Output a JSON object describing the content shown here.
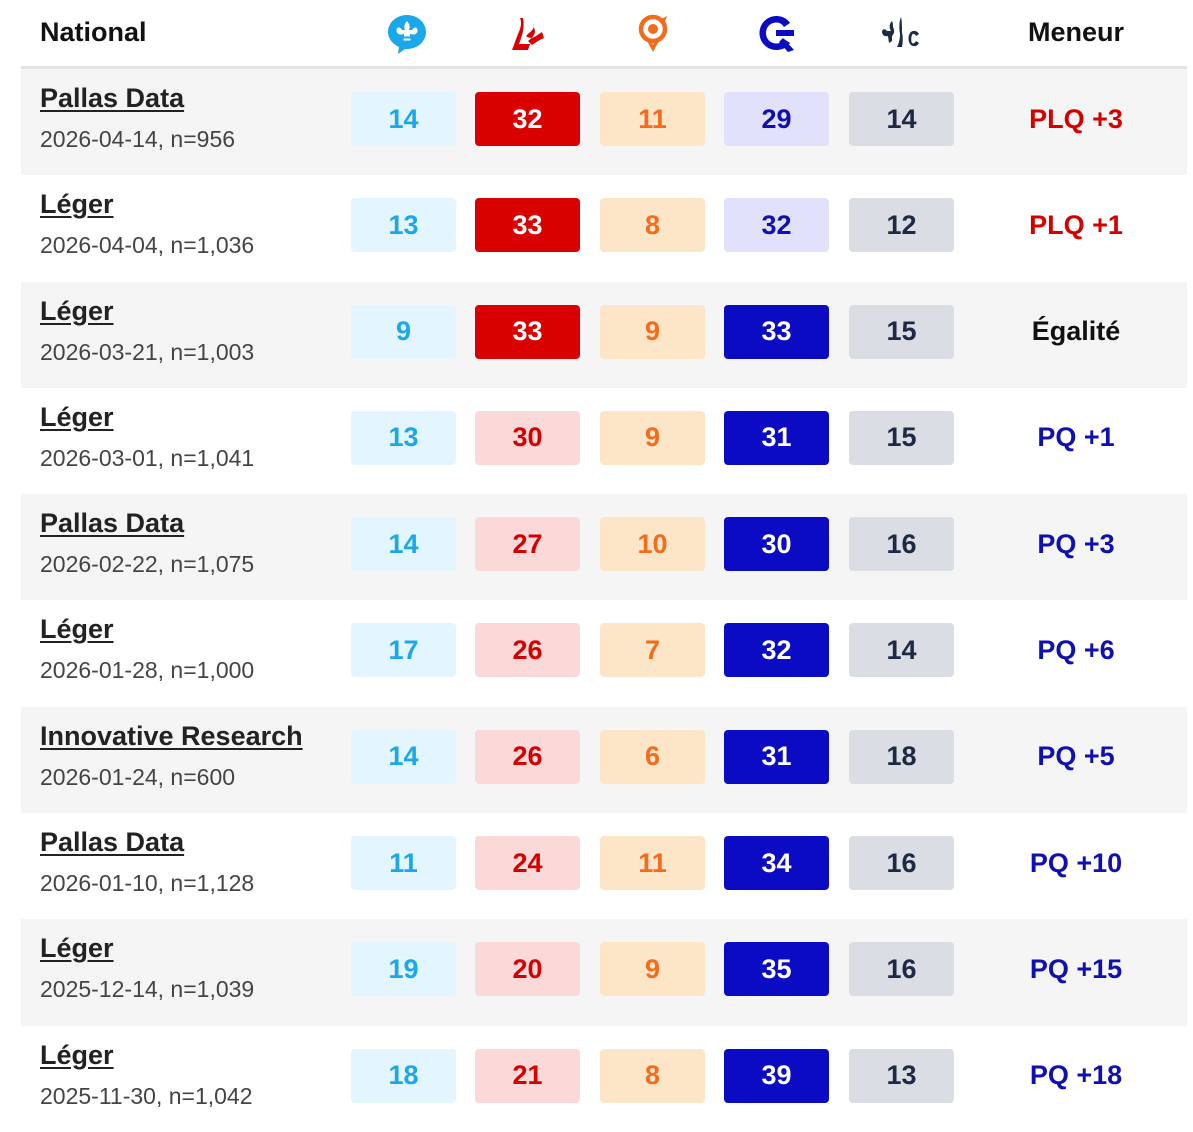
{
  "header": {
    "region": "National",
    "leader_label": "Meneur",
    "parties": [
      {
        "icon": "qs-icon",
        "color": "#1ba8e8"
      },
      {
        "icon": "plq-icon",
        "color": "#d90000"
      },
      {
        "icon": "qs-solidaire-icon",
        "color": "#f26c1c"
      },
      {
        "icon": "pq-icon",
        "color": "#0b0bc4"
      },
      {
        "icon": "pcq-icon",
        "color": "#1e2a44"
      }
    ]
  },
  "rows": [
    {
      "pollster": "Pallas Data",
      "meta": "2026-04-14, n=956",
      "v": [
        "14",
        "32",
        "11",
        "29",
        "14"
      ],
      "plq_hi": true,
      "pq_hi": false,
      "leader": "PLQ +3",
      "leader_party": "plq"
    },
    {
      "pollster": "Léger",
      "meta": "2026-04-04, n=1,036",
      "v": [
        "13",
        "33",
        "8",
        "32",
        "12"
      ],
      "plq_hi": true,
      "pq_hi": false,
      "leader": "PLQ +1",
      "leader_party": "plq"
    },
    {
      "pollster": "Léger",
      "meta": "2026-03-21, n=1,003",
      "v": [
        "9",
        "33",
        "9",
        "33",
        "15"
      ],
      "plq_hi": true,
      "pq_hi": true,
      "leader": "Égalité",
      "leader_party": "tie"
    },
    {
      "pollster": "Léger",
      "meta": "2026-03-01, n=1,041",
      "v": [
        "13",
        "30",
        "9",
        "31",
        "15"
      ],
      "plq_hi": false,
      "pq_hi": true,
      "leader": "PQ +1",
      "leader_party": "pq"
    },
    {
      "pollster": "Pallas Data",
      "meta": "2026-02-22, n=1,075",
      "v": [
        "14",
        "27",
        "10",
        "30",
        "16"
      ],
      "plq_hi": false,
      "pq_hi": true,
      "leader": "PQ +3",
      "leader_party": "pq"
    },
    {
      "pollster": "Léger",
      "meta": "2026-01-28, n=1,000",
      "v": [
        "17",
        "26",
        "7",
        "32",
        "14"
      ],
      "plq_hi": false,
      "pq_hi": true,
      "leader": "PQ +6",
      "leader_party": "pq"
    },
    {
      "pollster": "Innovative Research",
      "meta": "2026-01-24, n=600",
      "v": [
        "14",
        "26",
        "6",
        "31",
        "18"
      ],
      "plq_hi": false,
      "pq_hi": true,
      "leader": "PQ +5",
      "leader_party": "pq"
    },
    {
      "pollster": "Pallas Data",
      "meta": "2026-01-10, n=1,128",
      "v": [
        "11",
        "24",
        "11",
        "34",
        "16"
      ],
      "plq_hi": false,
      "pq_hi": true,
      "leader": "PQ +10",
      "leader_party": "pq"
    },
    {
      "pollster": "Léger",
      "meta": "2025-12-14, n=1,039",
      "v": [
        "19",
        "20",
        "9",
        "35",
        "16"
      ],
      "plq_hi": false,
      "pq_hi": true,
      "leader": "PQ +15",
      "leader_party": "pq"
    },
    {
      "pollster": "Léger",
      "meta": "2025-11-30, n=1,042",
      "v": [
        "18",
        "21",
        "8",
        "39",
        "13"
      ],
      "plq_hi": false,
      "pq_hi": true,
      "leader": "PQ +18",
      "leader_party": "pq"
    }
  ]
}
